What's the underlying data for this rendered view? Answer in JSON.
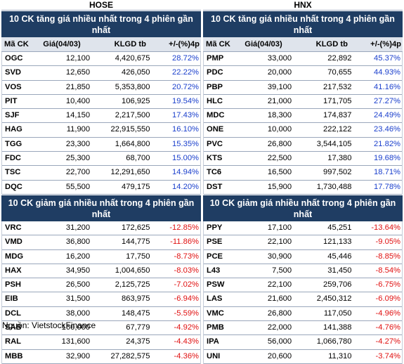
{
  "hose": {
    "market": "HOSE",
    "up_title": "10 CK tăng giá nhiều nhất trong 4 phiên gần nhất",
    "down_title": "10 CK giảm giá nhiều nhất trong 4 phiên gần nhất",
    "columns": [
      "Mã CK",
      "Giá(04/03)",
      "KLGD tb",
      "+/-(%)4p"
    ],
    "up_rows": [
      [
        "OGC",
        "12,100",
        "4,420,675",
        "28.72%"
      ],
      [
        "SVD",
        "12,650",
        "426,050",
        "22.22%"
      ],
      [
        "VOS",
        "21,850",
        "5,353,800",
        "20.72%"
      ],
      [
        "PIT",
        "10,400",
        "106,925",
        "19.54%"
      ],
      [
        "SJF",
        "14,150",
        "2,217,500",
        "17.43%"
      ],
      [
        "HAG",
        "11,900",
        "22,915,550",
        "16.10%"
      ],
      [
        "TGG",
        "23,300",
        "1,664,800",
        "15.35%"
      ],
      [
        "FDC",
        "25,300",
        "68,700",
        "15.00%"
      ],
      [
        "TSC",
        "22,700",
        "12,291,650",
        "14.94%"
      ],
      [
        "DQC",
        "55,500",
        "479,175",
        "14.20%"
      ]
    ],
    "down_rows": [
      [
        "VRC",
        "31,200",
        "172,625",
        "-12.85%"
      ],
      [
        "VMD",
        "36,800",
        "144,775",
        "-11.86%"
      ],
      [
        "MDG",
        "16,200",
        "17,750",
        "-8.73%"
      ],
      [
        "HAX",
        "34,950",
        "1,004,650",
        "-8.03%"
      ],
      [
        "PSH",
        "26,500",
        "2,125,725",
        "-7.02%"
      ],
      [
        "EIB",
        "31,500",
        "863,975",
        "-6.94%"
      ],
      [
        "DCL",
        "38,000",
        "148,475",
        "-5.59%"
      ],
      [
        "SAB",
        "160,000",
        "67,779",
        "-4.92%"
      ],
      [
        "RAL",
        "131,600",
        "24,375",
        "-4.43%"
      ],
      [
        "MBB",
        "32,900",
        "27,282,575",
        "-4.36%"
      ]
    ]
  },
  "hnx": {
    "market": "HNX",
    "up_title": "10 CK tăng giá nhiều nhất trong 4 phiên gần nhất",
    "down_title": "10 CK giảm giá nhiều nhất trong 4 phiên gần nhất",
    "columns": [
      "Mã CK",
      "Giá(04/03)",
      "KLGD tb",
      "+/-(%)4p"
    ],
    "up_rows": [
      [
        "PMP",
        "33,000",
        "22,892",
        "45.37%"
      ],
      [
        "PDC",
        "20,000",
        "70,655",
        "44.93%"
      ],
      [
        "PBP",
        "39,100",
        "217,532",
        "41.16%"
      ],
      [
        "HLC",
        "21,000",
        "171,705",
        "27.27%"
      ],
      [
        "MDC",
        "18,300",
        "174,837",
        "24.49%"
      ],
      [
        "ONE",
        "10,000",
        "222,122",
        "23.46%"
      ],
      [
        "PVC",
        "26,800",
        "3,544,105",
        "21.82%"
      ],
      [
        "KTS",
        "22,500",
        "17,380",
        "19.68%"
      ],
      [
        "TC6",
        "16,500",
        "997,502",
        "18.71%"
      ],
      [
        "DST",
        "15,900",
        "1,730,488",
        "17.78%"
      ]
    ],
    "down_rows": [
      [
        "PPY",
        "17,100",
        "45,251",
        "-13.64%"
      ],
      [
        "PSE",
        "22,100",
        "121,133",
        "-9.05%"
      ],
      [
        "PCE",
        "30,900",
        "45,446",
        "-8.85%"
      ],
      [
        "L43",
        "7,500",
        "31,450",
        "-8.54%"
      ],
      [
        "PSW",
        "22,100",
        "259,706",
        "-6.75%"
      ],
      [
        "LAS",
        "21,600",
        "2,450,312",
        "-6.09%"
      ],
      [
        "VMC",
        "26,800",
        "117,050",
        "-4.96%"
      ],
      [
        "PMB",
        "22,000",
        "141,388",
        "-4.76%"
      ],
      [
        "IPA",
        "56,000",
        "1,066,780",
        "-4.27%"
      ],
      [
        "UNI",
        "20,600",
        "11,310",
        "-3.74%"
      ]
    ]
  },
  "source": "Nguồn: VietstockFinance",
  "colors": {
    "header_bg": "#1f3d63",
    "up": "#1a3fcc",
    "down": "#e01010"
  }
}
